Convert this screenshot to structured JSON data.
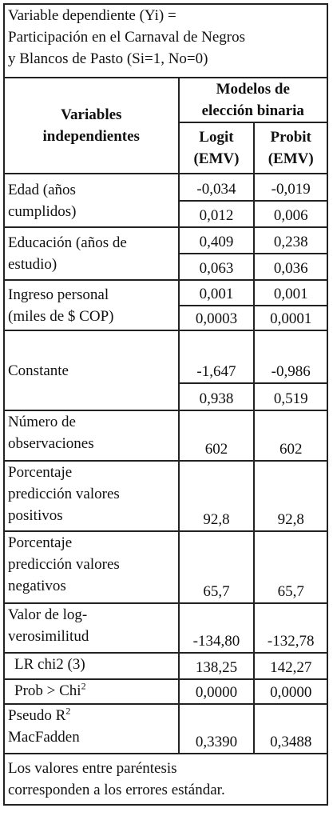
{
  "title": "Variable dependiente (Yi) =\nParticipación en el Carnaval de Negros\ny Blancos de Pasto (Si=1, No=0)",
  "header": {
    "variables": "Variables\nindependientes",
    "group": "Modelos de\nelección binaria",
    "logit": "Logit\n(EMV)",
    "probit": "Probit\n(EMV)"
  },
  "rows": {
    "edad": {
      "label": "Edad (años\ncumplidos)",
      "logit_coef": "-0,034",
      "probit_coef": "-0,019",
      "logit_se": "0,012",
      "probit_se": "0,006"
    },
    "educacion": {
      "label": "Educación (años de\nestudio)",
      "logit_coef": "0,409",
      "probit_coef": "0,238",
      "logit_se": "0,063",
      "probit_se": "0,036"
    },
    "ingreso": {
      "label": "Ingreso personal\n(miles de $ COP)",
      "logit_coef": "0,001",
      "probit_coef": "0,001",
      "logit_se": "0,0003",
      "probit_se": "0,0001"
    },
    "constante": {
      "label": "Constante",
      "logit_coef": "-1,647",
      "probit_coef": "-0,986",
      "logit_se": "0,938",
      "probit_se": "0,519"
    }
  },
  "stats": {
    "observaciones": {
      "label": "Número de\nobservaciones",
      "logit": "602",
      "probit": "602"
    },
    "pred_pos": {
      "label": "Porcentaje\npredicción valores\npositivos",
      "logit": "92,8",
      "probit": "92,8"
    },
    "pred_neg": {
      "label": "Porcentaje\npredicción valores\nnegativos",
      "logit": "65,7",
      "probit": "65,7"
    },
    "loglik": {
      "label": "Valor de log-\nverosimilitud",
      "logit": "-134,80",
      "probit": "-132,78"
    },
    "lr": {
      "label": "LR chi2 (3)",
      "logit": "138,25",
      "probit": "142,27"
    },
    "prob": {
      "label": "Prob > Chi",
      "sup": "2",
      "logit": "0,0000",
      "probit": "0,0000"
    },
    "pseudo": {
      "label_a": "Pseudo R",
      "sup": "2",
      "label_b": "MacFadden",
      "logit": "0,3390",
      "probit": "0,3488"
    }
  },
  "note": "Los valores entre paréntesis\ncorresponden a los errores estándar."
}
